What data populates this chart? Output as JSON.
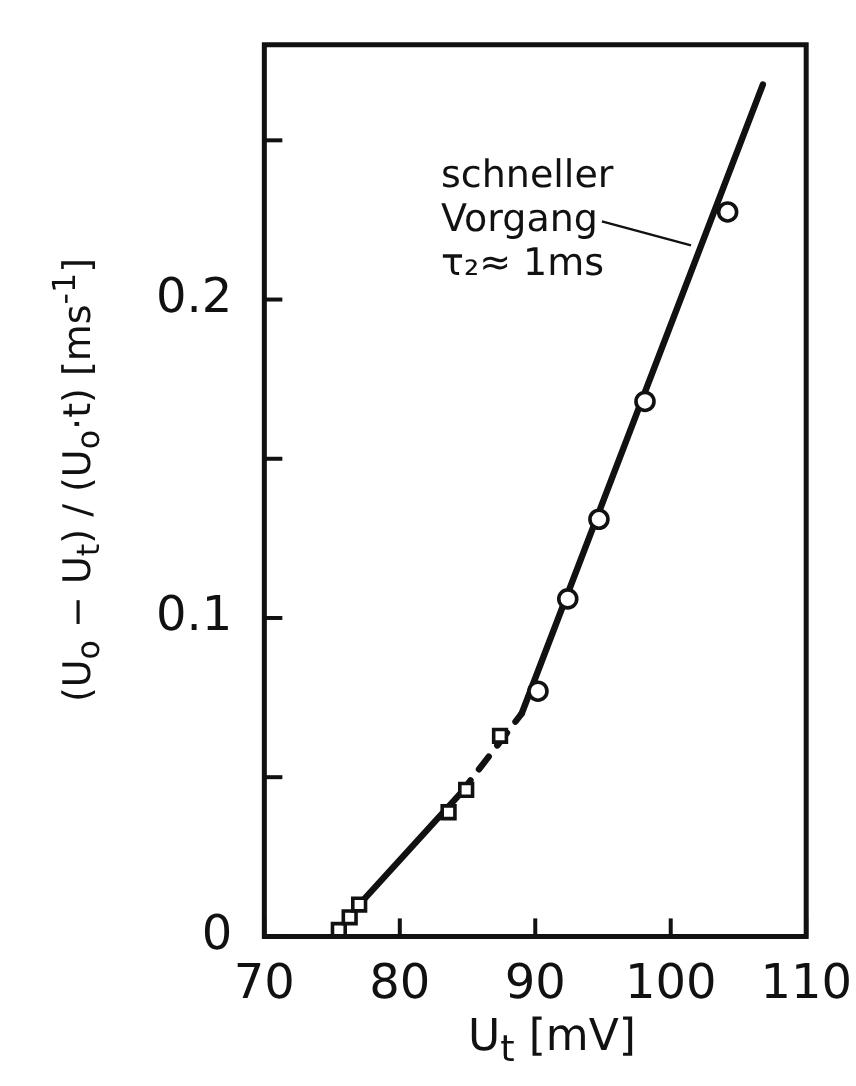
{
  "chart_data": {
    "type": "scatter",
    "xlabel": "U$_{t}$ [mV]",
    "ylabel": "(U$_{o}$ − U$_{t}$) / (U$_{o}$·t) [ms$^{-1}$]",
    "xlim": [
      70,
      110
    ],
    "xticks": [
      70,
      80,
      90,
      100,
      110
    ],
    "ylim": [
      0,
      0.28
    ],
    "yticks": [
      0,
      {
        "value": 0.05,
        "label": null
      },
      0.1,
      {
        "value": 0.15,
        "label": null
      },
      0.2,
      {
        "value": 0.25,
        "label": null
      }
    ],
    "grid": false,
    "legend": false,
    "series": [
      {
        "type": "scatter",
        "marker": "square",
        "color": "#111111",
        "x": [
          75.5,
          76.3,
          77.0,
          83.6,
          84.9,
          87.4
        ],
        "values": [
          0.002,
          0.006,
          0.01,
          0.039,
          0.046,
          0.063
        ]
      },
      {
        "type": "scatter",
        "marker": "circle",
        "color": "#111111",
        "x": [
          90.2,
          92.4,
          94.7,
          98.1,
          104.2
        ],
        "values": [
          0.077,
          0.106,
          0.131,
          0.168,
          0.2275
        ]
      },
      {
        "type": "line",
        "line_style": "solid",
        "color": "#111111",
        "x": [
          77.0,
          84.5
        ],
        "values": [
          0.01,
          0.045
        ]
      },
      {
        "type": "line",
        "line_style": "dashed",
        "color": "#111111",
        "x": [
          84.5,
          89.0
        ],
        "values": [
          0.045,
          0.07
        ]
      },
      {
        "type": "line",
        "line_style": "solid",
        "color": "#111111",
        "x": [
          89.0,
          106.8
        ],
        "values": [
          0.07,
          0.2675
        ]
      }
    ],
    "annotations": [
      {
        "text": "schneller\nVorgang\nτ₂≈ 1ms",
        "x": 101.5,
        "y": 0.217
      }
    ]
  }
}
